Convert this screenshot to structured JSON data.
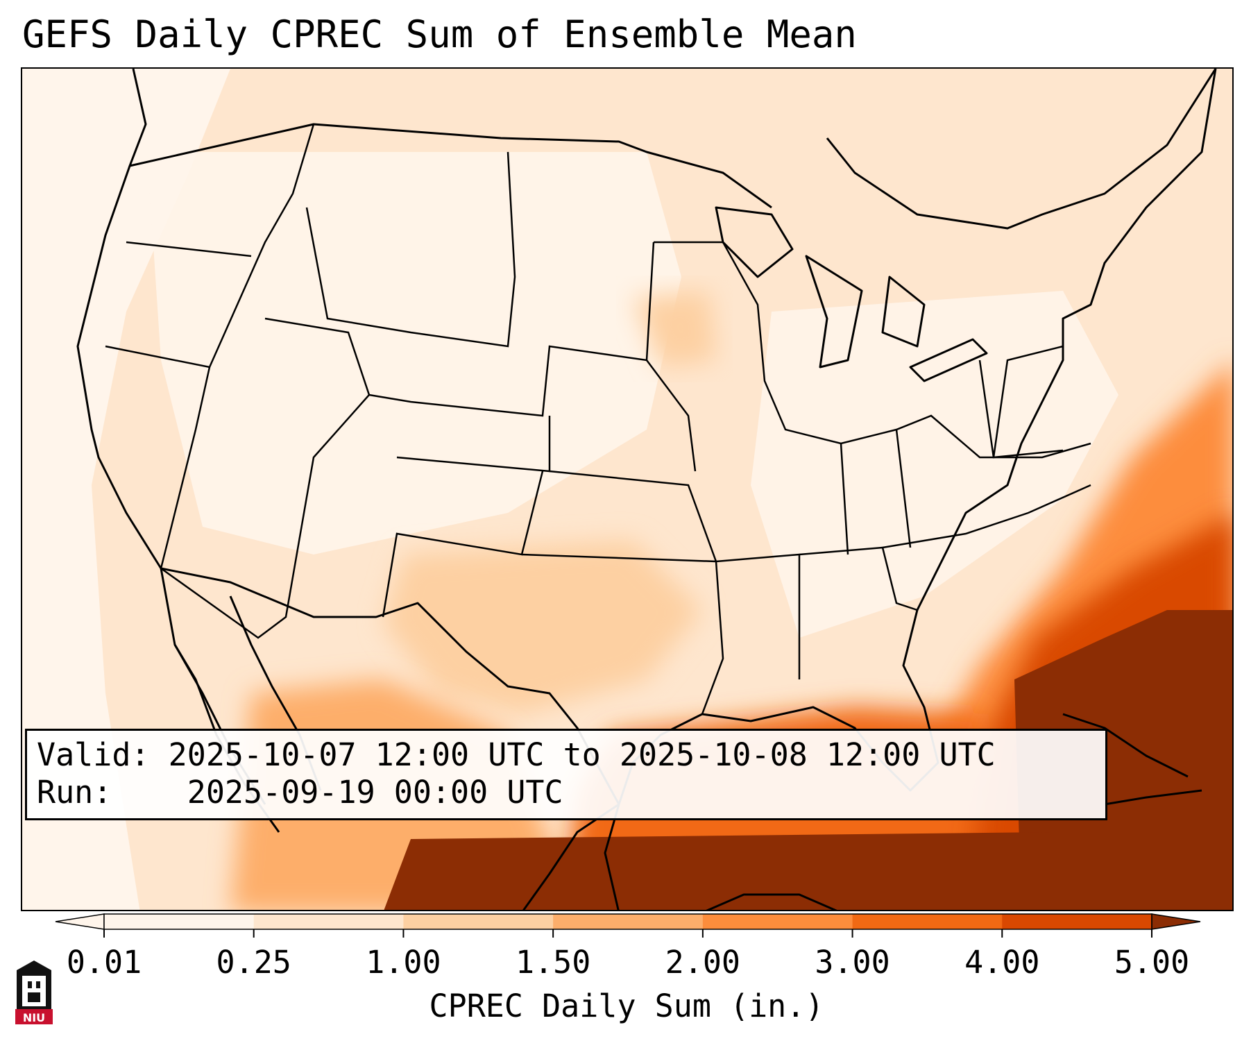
{
  "title": "GEFS Daily CPREC Sum of Ensemble Mean",
  "info": {
    "valid_label": "Valid:",
    "valid_value": "2025-10-07 12:00 UTC to 2025-10-08 12:00 UTC",
    "run_label": "Run:",
    "run_value": "2025-09-19 00:00 UTC"
  },
  "colorbar": {
    "label": "CPREC Daily Sum (in.)",
    "ticks": [
      "0.01",
      "0.25",
      "1.00",
      "1.50",
      "2.00",
      "3.00",
      "4.00",
      "5.00"
    ],
    "colors": [
      "#fff5eb",
      "#fee6ce",
      "#fdd0a2",
      "#fdae6b",
      "#fd8d3c",
      "#f16913",
      "#d94801",
      "#8c2d04"
    ],
    "extend": "both"
  },
  "logo": {
    "text": "NIU"
  },
  "map": {
    "projection": "lambert-conformal",
    "region": "CONUS",
    "overlays": [
      "coastlines",
      "state-borders",
      "country-borders"
    ]
  }
}
